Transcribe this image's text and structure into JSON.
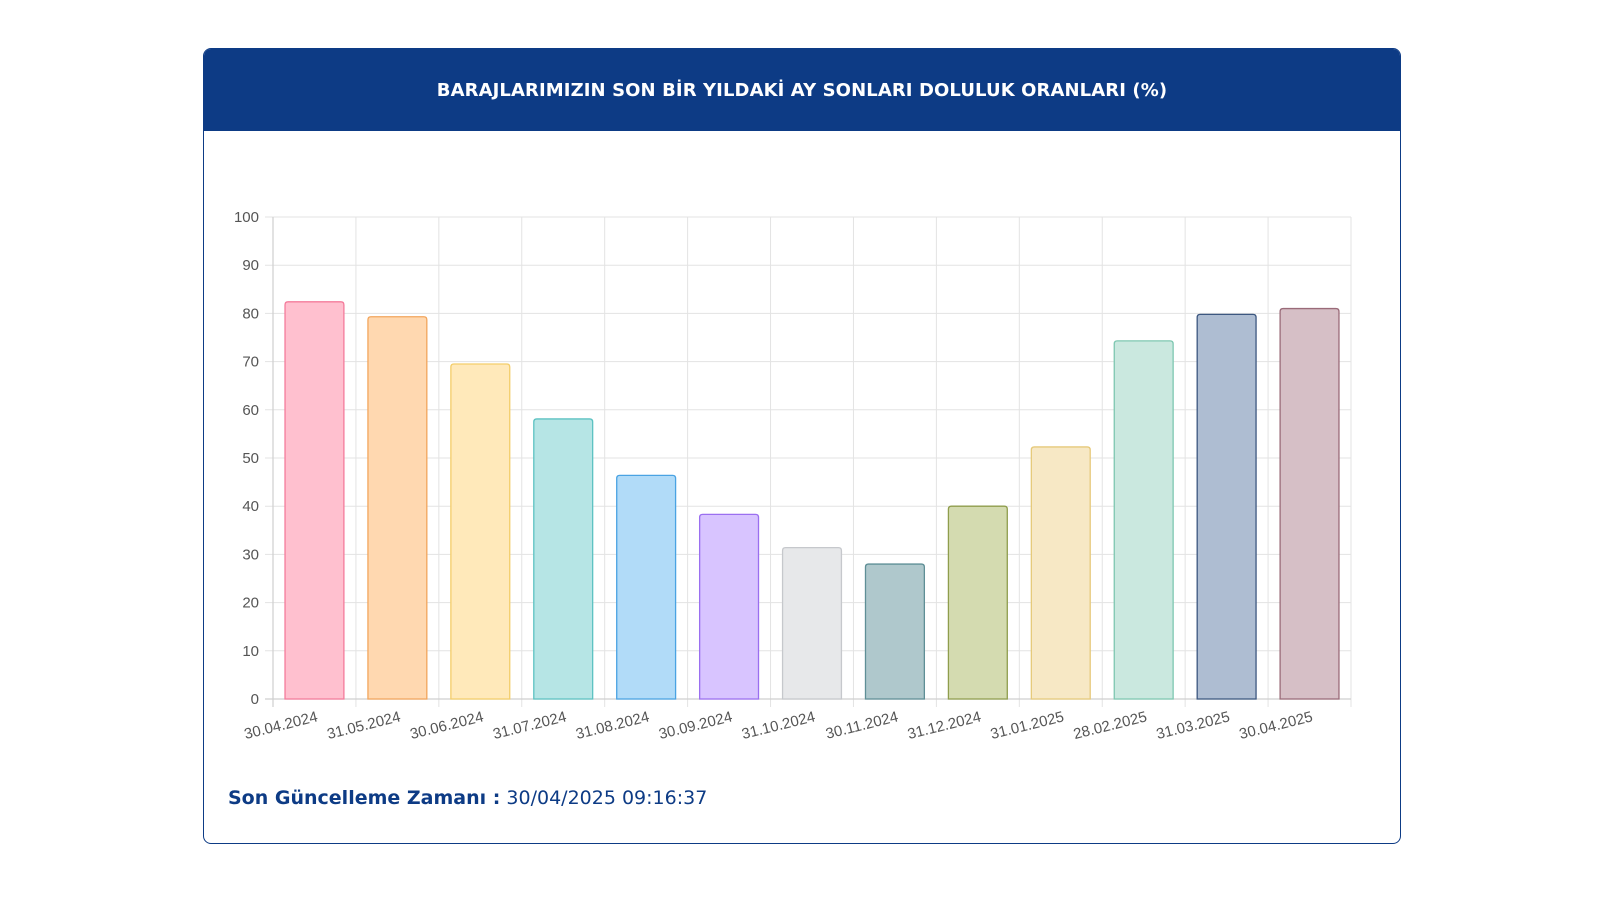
{
  "header": {
    "title": "BARAJLARIMIZIN SON BİR YILDAKİ AY SONLARI DOLULUK ORANLARI (%)"
  },
  "footer": {
    "updated_label": "Son Güncelleme Zamanı :",
    "updated_value": "30/04/2025 09:16:37"
  },
  "colors": {
    "brand": "#0d3b85",
    "grid": "#e3e3e3",
    "tick_text": "#555555"
  },
  "chart_data": {
    "type": "bar",
    "title": "BARAJLARIMIZIN SON BİR YILDAKİ AY SONLARI DOLULUK ORANLARI (%)",
    "xlabel": "",
    "ylabel": "",
    "ylim": [
      0,
      100
    ],
    "yticks": [
      0,
      10,
      20,
      30,
      40,
      50,
      60,
      70,
      80,
      90,
      100
    ],
    "grid": true,
    "legend": "none",
    "categories": [
      "30.04.2024",
      "31.05.2024",
      "30.06.2024",
      "31.07.2024",
      "31.08.2024",
      "30.09.2024",
      "31.10.2024",
      "30.11.2024",
      "31.12.2024",
      "31.01.2025",
      "28.02.2025",
      "31.03.2025",
      "30.04.2025"
    ],
    "values": [
      82.4,
      79.3,
      69.5,
      58.1,
      46.4,
      38.3,
      31.4,
      28.0,
      40.0,
      52.3,
      74.3,
      79.8,
      81.0
    ],
    "bar_colors": [
      {
        "fill": "#ffc0cf",
        "stroke": "#f47b9b"
      },
      {
        "fill": "#ffd8b0",
        "stroke": "#f2a55c"
      },
      {
        "fill": "#ffe9ba",
        "stroke": "#f3cd6a"
      },
      {
        "fill": "#b6e5e5",
        "stroke": "#5cc2c2"
      },
      {
        "fill": "#b1dbf8",
        "stroke": "#4aa3e3"
      },
      {
        "fill": "#d8c4ff",
        "stroke": "#9b6ff0"
      },
      {
        "fill": "#e7e8ea",
        "stroke": "#c6c8cc"
      },
      {
        "fill": "#afc8cc",
        "stroke": "#5f8f96"
      },
      {
        "fill": "#d4dbb0",
        "stroke": "#8f9d4c"
      },
      {
        "fill": "#f7e8c5",
        "stroke": "#e6c97a"
      },
      {
        "fill": "#cae8df",
        "stroke": "#7ec7b1"
      },
      {
        "fill": "#aebdd2",
        "stroke": "#3c5780"
      },
      {
        "fill": "#d6bfc6",
        "stroke": "#9a6b79"
      }
    ]
  }
}
